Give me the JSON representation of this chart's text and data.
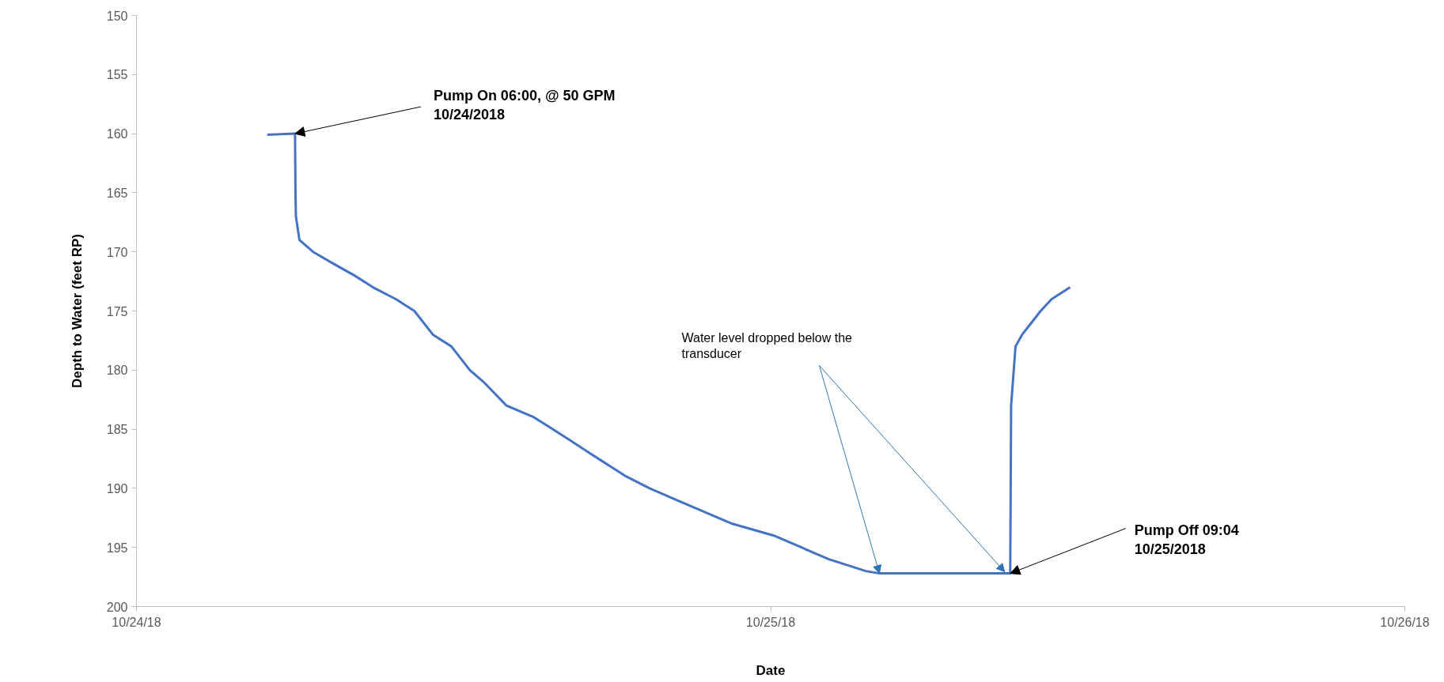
{
  "chart_data": {
    "type": "line",
    "xlabel": "Date",
    "ylabel": "Depth to Water (feet RP)",
    "x": [
      "2018-10-24T04:57",
      "2018-10-24T06:00",
      "2018-10-24T06:01",
      "2018-10-24T06:02",
      "2018-10-24T06:10",
      "2018-10-24T06:41",
      "2018-10-24T07:27",
      "2018-10-24T08:15",
      "2018-10-24T08:57",
      "2018-10-24T09:49",
      "2018-10-24T10:31",
      "2018-10-24T11:13",
      "2018-10-24T11:55",
      "2018-10-24T12:37",
      "2018-10-24T13:08",
      "2018-10-24T14:00",
      "2018-10-24T15:03",
      "2018-10-24T15:45",
      "2018-10-24T16:27",
      "2018-10-24T17:08",
      "2018-10-24T17:50",
      "2018-10-24T18:32",
      "2018-10-24T19:25",
      "2018-10-24T20:27",
      "2018-10-24T21:30",
      "2018-10-24T22:33",
      "2018-10-25T00:07",
      "2018-10-25T01:10",
      "2018-10-25T02:12",
      "2018-10-25T03:36",
      "2018-10-25T04:07",
      "2018-10-25T09:04",
      "2018-10-25T09:06",
      "2018-10-25T09:16",
      "2018-10-25T09:31",
      "2018-10-25T09:52",
      "2018-10-25T10:13",
      "2018-10-25T10:38",
      "2018-10-25T11:20"
    ],
    "series": [
      {
        "color": "#4472c4",
        "values": [
          160.1,
          160.0,
          165,
          167,
          169,
          170,
          171,
          172,
          173,
          174,
          175,
          177,
          178,
          180,
          181,
          183,
          184,
          185,
          186,
          187,
          188,
          189,
          190,
          191,
          192,
          193,
          194,
          195,
          196,
          197,
          197.2,
          197.2,
          183,
          178,
          177,
          176,
          175,
          174,
          173
        ]
      }
    ],
    "xlim": [
      "2018-10-24",
      "2018-10-26"
    ],
    "xticks": [
      {
        "value": "2018-10-24",
        "label": "10/24/18"
      },
      {
        "value": "2018-10-25",
        "label": "10/25/18"
      },
      {
        "value": "2018-10-26",
        "label": "10/26/18"
      }
    ],
    "ylim": [
      200,
      150
    ],
    "yticks": [
      150,
      155,
      160,
      165,
      170,
      175,
      180,
      185,
      190,
      195,
      200
    ],
    "grid": false,
    "marker": "none",
    "line_style": "solid",
    "annotations": [
      {
        "text": "Pump On 06:00, @ 50 GPM\n10/24/2018",
        "x": "2018-10-24T06:00",
        "y": 160.0
      },
      {
        "text": "Water level dropped below the\ntransducer",
        "x": "2018-10-25T04:07",
        "y": 197.2
      },
      {
        "text": "Pump Off 09:04\n10/25/2018",
        "x": "2018-10-25T09:04",
        "y": 197.2
      }
    ]
  }
}
